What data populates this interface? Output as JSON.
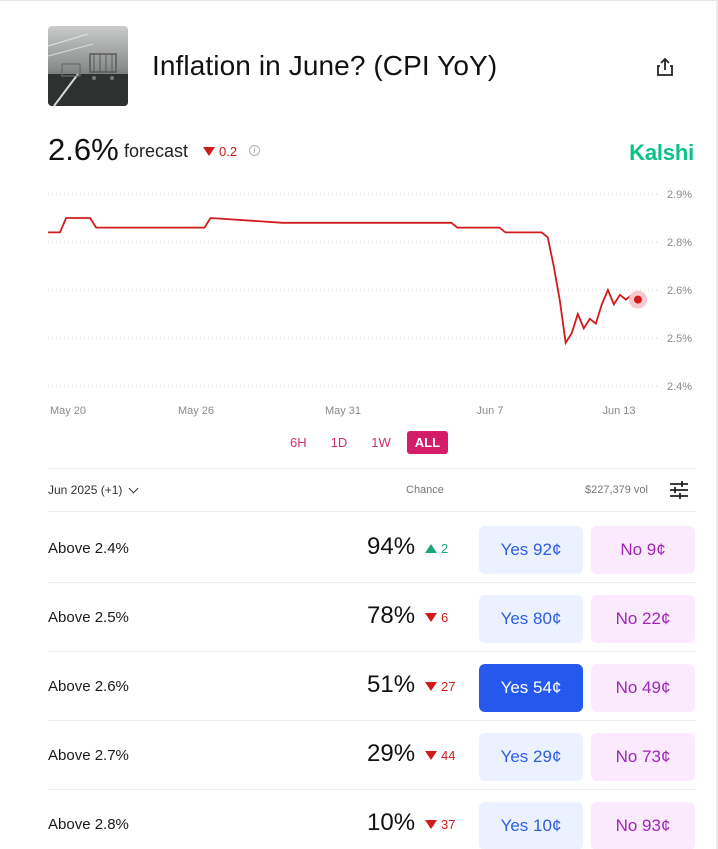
{
  "header": {
    "title": "Inflation in June? (CPI YoY)",
    "share_icon": "share-icon"
  },
  "forecast": {
    "value": "2.6%",
    "label": "forecast",
    "change": "0.2",
    "change_direction": "down",
    "info_icon": "info-icon"
  },
  "brand": {
    "name": "Kalshi",
    "color": "#09c285"
  },
  "chart_data": {
    "type": "line",
    "x_tick_labels": [
      "May 20",
      "May 26",
      "May 31",
      "Jun 7",
      "Jun 13"
    ],
    "y_tick_labels": [
      "2.9%",
      "2.8%",
      "2.6%",
      "2.5%",
      "2.4%"
    ],
    "series": [
      {
        "color": "#d11b1b",
        "points": [
          [
            0,
            2.82
          ],
          [
            2,
            2.82
          ],
          [
            3,
            2.85
          ],
          [
            7,
            2.85
          ],
          [
            8,
            2.83
          ],
          [
            13,
            2.83
          ],
          [
            25,
            2.83
          ],
          [
            26,
            2.83
          ],
          [
            27,
            2.85
          ],
          [
            39,
            2.84
          ],
          [
            59,
            2.84
          ],
          [
            67,
            2.84
          ],
          [
            68,
            2.83
          ],
          [
            75,
            2.83
          ],
          [
            76,
            2.82
          ],
          [
            82,
            2.82
          ],
          [
            83,
            2.81
          ],
          [
            84,
            2.7
          ],
          [
            85,
            2.58
          ],
          [
            86,
            2.49
          ],
          [
            87,
            2.51
          ],
          [
            88,
            2.55
          ],
          [
            89,
            2.52
          ],
          [
            90,
            2.54
          ],
          [
            91,
            2.53
          ],
          [
            92,
            2.57
          ],
          [
            93,
            2.6
          ],
          [
            94,
            2.57
          ],
          [
            95,
            2.59
          ],
          [
            96,
            2.58
          ],
          [
            97,
            2.59
          ],
          [
            98,
            2.58
          ]
        ],
        "last_value": 2.58
      }
    ],
    "grid": "dotted horizontal"
  },
  "ranges": {
    "options": [
      "6H",
      "1D",
      "1W",
      "ALL"
    ],
    "selected": "ALL"
  },
  "table": {
    "period_label": "Jun 2025 (+1)",
    "chance_header": "Chance",
    "volume": "$227,379 vol",
    "filter_icon": "sliders-icon",
    "rows": [
      {
        "label": "Above 2.4%",
        "chance": "94%",
        "change": "2",
        "direction": "up",
        "yes": "Yes 92¢",
        "no": "No 9¢",
        "yes_selected": false
      },
      {
        "label": "Above 2.5%",
        "chance": "78%",
        "change": "6",
        "direction": "down",
        "yes": "Yes 80¢",
        "no": "No 22¢",
        "yes_selected": false
      },
      {
        "label": "Above 2.6%",
        "chance": "51%",
        "change": "27",
        "direction": "down",
        "yes": "Yes 54¢",
        "no": "No 49¢",
        "yes_selected": true
      },
      {
        "label": "Above 2.7%",
        "chance": "29%",
        "change": "44",
        "direction": "down",
        "yes": "Yes 29¢",
        "no": "No 73¢",
        "yes_selected": false
      },
      {
        "label": "Above 2.8%",
        "chance": "10%",
        "change": "37",
        "direction": "down",
        "yes": "Yes 10¢",
        "no": "No 93¢",
        "yes_selected": false
      }
    ]
  },
  "colors": {
    "accent_pink": "#d41c68",
    "yes_blue": "#2558ec",
    "no_purple": "#a026b8",
    "down_red": "#d11b1b",
    "up_green": "#19a974"
  }
}
